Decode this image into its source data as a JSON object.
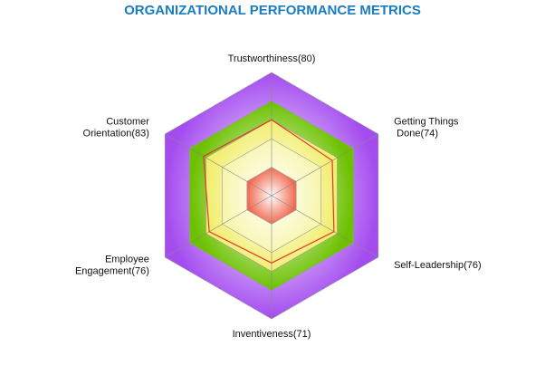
{
  "chart_data": {
    "type": "radar",
    "title": "ORGANIZATIONAL PERFORMANCE METRICS",
    "categories": [
      "Trustworthiness(80)",
      "Getting Things\n Done(74)",
      "Self-Leadership(76)",
      "Inventiveness(71)",
      "Employee\nEngagement(76)",
      "Customer\nOrientation(83)"
    ],
    "values": [
      80,
      74,
      76,
      71,
      76,
      83
    ],
    "color": "#e03a2a",
    "ylim": [
      0,
      130
    ],
    "bands": [
      {
        "value": 130,
        "color": "#a44cf0"
      },
      {
        "value": 100,
        "color": "#6cc000"
      },
      {
        "value": 80,
        "color": "#f2ee70"
      },
      {
        "value": 60,
        "color": "#f8f6b0"
      },
      {
        "value": 30,
        "color": "#f06a50"
      }
    ]
  }
}
